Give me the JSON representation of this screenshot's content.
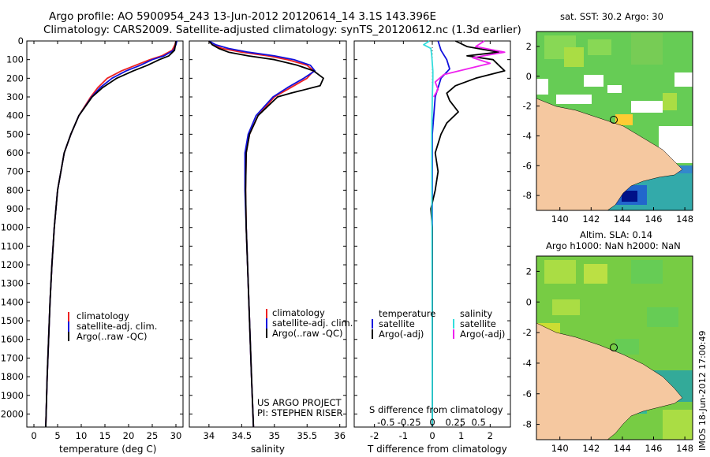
{
  "header": {
    "line1": "Argo profile: AO 5900954_243 13-Jun-2012 20120614_14 3.1S 143.396E",
    "line2": "Climatology: CARS2009. Satellite-adjusted climatology: synTS_20120612.nc (1.3d earlier)"
  },
  "colors": {
    "climatology": "#ee2222",
    "satellite": "#1111dd",
    "argo": "#000000",
    "sal_satellite": "#33dddd",
    "sal_argo": "#ee22ee",
    "land": "#f5c8a0",
    "map_green": "#55cc55",
    "map_yellow": "#dddd44",
    "map_cyan": "#33aaaa"
  },
  "depth_axis": {
    "ticks": [
      0,
      100,
      200,
      300,
      400,
      500,
      600,
      700,
      800,
      900,
      1000,
      1100,
      1200,
      1300,
      1400,
      1500,
      1600,
      1700,
      1800,
      1900,
      2000
    ],
    "max": 2070
  },
  "chart_data": [
    {
      "type": "line",
      "name": "temperature",
      "xlabel": "temperature (deg C)",
      "xlim": [
        -1.5,
        31.5
      ],
      "xticks": [
        0,
        5,
        10,
        15,
        20,
        25,
        30
      ],
      "legend": [
        "climatology",
        "satellite-adj. clim.",
        "Argo(..raw -QC)"
      ],
      "series": [
        {
          "name": "climatology",
          "depth": [
            0,
            20,
            50,
            80,
            100,
            130,
            160,
            200,
            250,
            300,
            400,
            500,
            600,
            800,
            1000,
            1200,
            1400,
            1600,
            1800,
            2070
          ],
          "values": [
            30.0,
            29.8,
            29.2,
            27.0,
            24.5,
            21.5,
            18.5,
            15.5,
            13.5,
            12.0,
            9.5,
            7.8,
            6.4,
            5.0,
            4.3,
            3.8,
            3.4,
            3.1,
            2.8,
            2.5
          ]
        },
        {
          "name": "satellite",
          "depth": [
            0,
            20,
            50,
            80,
            100,
            130,
            160,
            200,
            250,
            300,
            400,
            500,
            600,
            800,
            1000,
            1200,
            1400,
            1600,
            1800,
            2070
          ],
          "values": [
            30.2,
            30.0,
            29.5,
            27.5,
            25.0,
            22.5,
            19.5,
            16.5,
            14.0,
            12.2,
            9.5,
            7.8,
            6.4,
            5.0,
            4.3,
            3.8,
            3.4,
            3.1,
            2.8,
            2.5
          ]
        },
        {
          "name": "argo",
          "depth": [
            0,
            20,
            50,
            80,
            100,
            130,
            160,
            200,
            250,
            300,
            400,
            500,
            600,
            800,
            1000,
            1200,
            1400,
            1600,
            1800,
            2070
          ],
          "values": [
            30.0,
            29.9,
            29.7,
            28.5,
            26.5,
            24.0,
            21.0,
            17.5,
            14.5,
            12.3,
            9.5,
            7.8,
            6.4,
            5.0,
            4.3,
            3.8,
            3.4,
            3.1,
            2.8,
            2.5
          ]
        }
      ]
    },
    {
      "type": "line",
      "name": "salinity",
      "xlabel": "salinity",
      "xlim": [
        33.7,
        36.1
      ],
      "xticks": [
        34,
        34.5,
        35,
        35.5,
        36
      ],
      "legend": [
        "climatology",
        "satellite-adj. clim.",
        "Argo(..raw -QC)"
      ],
      "annotations": [
        "US ARGO PROJECT",
        "PI: STEPHEN RISER"
      ],
      "series": [
        {
          "name": "climatology",
          "depth": [
            0,
            20,
            40,
            60,
            80,
            100,
            130,
            160,
            200,
            250,
            300,
            400,
            500,
            600,
            800,
            1000,
            1200,
            1500,
            1800,
            2070
          ],
          "values": [
            34.0,
            34.05,
            34.2,
            34.5,
            34.9,
            35.2,
            35.5,
            35.6,
            35.5,
            35.25,
            35.0,
            34.75,
            34.62,
            34.57,
            34.56,
            34.57,
            34.59,
            34.62,
            34.65,
            34.68
          ]
        },
        {
          "name": "satellite",
          "depth": [
            0,
            20,
            40,
            60,
            80,
            100,
            130,
            160,
            200,
            250,
            300,
            400,
            500,
            600,
            800,
            1000,
            1200,
            1500,
            1800,
            2070
          ],
          "values": [
            34.0,
            34.1,
            34.3,
            34.6,
            35.0,
            35.3,
            35.55,
            35.62,
            35.45,
            35.2,
            34.98,
            34.72,
            34.6,
            34.55,
            34.55,
            34.57,
            34.59,
            34.62,
            34.65,
            34.68
          ]
        },
        {
          "name": "argo",
          "depth": [
            0,
            20,
            40,
            60,
            80,
            100,
            130,
            160,
            200,
            240,
            280,
            300,
            400,
            500,
            600,
            800,
            1000,
            1200,
            1500,
            1800,
            2070
          ],
          "values": [
            34.0,
            34.05,
            34.15,
            34.3,
            34.6,
            35.0,
            35.35,
            35.6,
            35.75,
            35.7,
            35.25,
            35.05,
            34.75,
            34.62,
            34.57,
            34.56,
            34.57,
            34.59,
            34.62,
            34.65,
            34.68
          ]
        }
      ]
    },
    {
      "type": "line",
      "name": "difference",
      "xlabel_bottom": "T difference from climatology",
      "xlabel_top": "S difference from climatology",
      "xlim": [
        -2.7,
        2.7
      ],
      "xticks_bottom": [
        -2,
        -1,
        0,
        1,
        2
      ],
      "xticks_top": [
        "-0.5",
        "-0.25",
        "0",
        "0.25",
        "0.5"
      ],
      "legend_left": [
        "temperature",
        "satellite",
        "Argo(-adj)"
      ],
      "legend_right": [
        "salinity",
        "satellite",
        "Argo(-adj)"
      ],
      "series": [
        {
          "name": "T satellite",
          "depth": [
            0,
            50,
            100,
            150,
            200,
            300,
            500,
            1000,
            2070
          ],
          "values": [
            0.2,
            0.3,
            0.5,
            0.6,
            0.3,
            0.1,
            0.0,
            0.0,
            0.0
          ]
        },
        {
          "name": "T argo",
          "depth": [
            0,
            30,
            60,
            80,
            100,
            130,
            160,
            200,
            240,
            280,
            320,
            380,
            440,
            500,
            600,
            700,
            800,
            900,
            1000,
            2070
          ],
          "values": [
            0.8,
            1.2,
            2.3,
            1.2,
            2.1,
            2.3,
            2.5,
            1.5,
            0.8,
            0.5,
            0.6,
            0.9,
            0.5,
            0.3,
            0.1,
            0.2,
            0.1,
            -0.05,
            0.0,
            0.0
          ]
        },
        {
          "name": "S satellite",
          "depth": [
            0,
            20,
            40,
            80,
            120,
            160,
            200,
            300,
            500,
            1000,
            2070
          ],
          "values": [
            -0.1,
            -0.3,
            -0.05,
            -0.02,
            0.0,
            0.02,
            0.02,
            0.0,
            -0.02,
            -0.01,
            0.0
          ]
        },
        {
          "name": "S argo",
          "depth": [
            0,
            30,
            60,
            90,
            120,
            150,
            180,
            220,
            260,
            300
          ],
          "values": [
            1.8,
            1.5,
            2.5,
            1.4,
            2.0,
            1.2,
            0.4,
            0.1,
            0.2,
            0.05
          ]
        }
      ]
    }
  ],
  "maps": [
    {
      "title": "sat. SST: 30.2 Argo: 30",
      "yticks": [
        "2",
        "0",
        "-2",
        "-4",
        "-6",
        "-8"
      ],
      "xticks": [
        "140",
        "142",
        "144",
        "146",
        "148"
      ]
    },
    {
      "title_line1": "Altim. SLA: 0.14",
      "title_line2": "Argo h1000: NaN h2000: NaN",
      "yticks": [
        "2",
        "0",
        "-2",
        "-4",
        "-6",
        "-8"
      ],
      "xticks": [
        "140",
        "142",
        "144",
        "146",
        "148"
      ]
    }
  ],
  "timestamp": "IMOS 18-Jun-2012 17:00:49"
}
